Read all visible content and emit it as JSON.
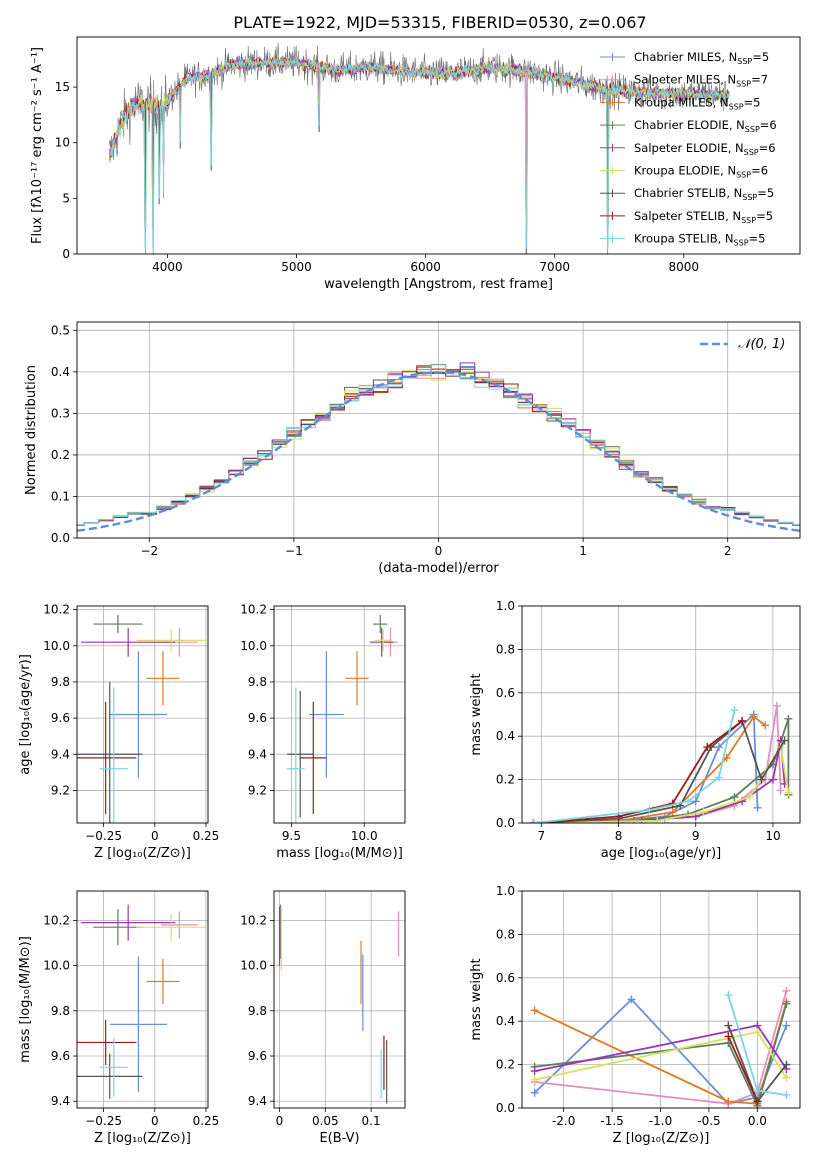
{
  "title": "PLATE=1922, MJD=53315, FIBERID=0530, z=0.067",
  "colors": [
    "#6a8fd9",
    "#e48fc0",
    "#e07a22",
    "#5f7f5f",
    "#9b35b5",
    "#d9e060",
    "#555555",
    "#9b1c1c",
    "#7ad6e0"
  ],
  "legend": [
    {
      "label": "Chabrier MILES, N",
      "sub": "SSP",
      "eq": "=5"
    },
    {
      "label": "Salpeter MILES, N",
      "sub": "SSP",
      "eq": "=7"
    },
    {
      "label": "Kroupa MILES, N",
      "sub": "SSP",
      "eq": "=5"
    },
    {
      "label": "Chabrier ELODIE, N",
      "sub": "SSP",
      "eq": "=6"
    },
    {
      "label": "Salpeter ELODIE, N",
      "sub": "SSP",
      "eq": "=6"
    },
    {
      "label": "Kroupa ELODIE, N",
      "sub": "SSP",
      "eq": "=6"
    },
    {
      "label": "Chabrier STELIB, N",
      "sub": "SSP",
      "eq": "=5"
    },
    {
      "label": "Salpeter STELIB, N",
      "sub": "SSP",
      "eq": "=5"
    },
    {
      "label": "Kroupa STELIB, N",
      "sub": "SSP",
      "eq": "=5"
    }
  ],
  "chart_data": [
    {
      "id": "spectrum",
      "type": "line",
      "xlabel": "wavelength [Angstrom, rest frame]",
      "ylabel": "Flux [fλ10⁻¹⁷ erg cm⁻² s⁻¹ A⁻¹]",
      "xlim": [
        3300,
        8900
      ],
      "ylim": [
        0,
        19.5
      ],
      "xticks": [
        4000,
        5000,
        6000,
        7000,
        8000
      ],
      "yticks": [
        0,
        5,
        10,
        15
      ],
      "continuum_x": [
        3560,
        3650,
        3750,
        3850,
        3950,
        4050,
        4150,
        4300,
        4500,
        4700,
        5000,
        5300,
        5600,
        5900,
        6200,
        6500,
        6800,
        7100,
        7400,
        7700,
        8000,
        8300
      ],
      "continuum_y": [
        9.0,
        12.0,
        13.5,
        13.5,
        13.0,
        14.5,
        15.8,
        16.0,
        17.0,
        17.2,
        17.2,
        16.5,
        16.8,
        16.3,
        16.2,
        16.8,
        16.4,
        15.6,
        14.8,
        14.5,
        14.4,
        14.3
      ],
      "absorption_lines": [
        {
          "x": 3830,
          "y": 0.0
        },
        {
          "x": 3890,
          "y": 0.0
        },
        {
          "x": 3935,
          "y": 4.5
        },
        {
          "x": 3970,
          "y": 5.0
        },
        {
          "x": 4100,
          "y": 9.5
        },
        {
          "x": 4340,
          "y": 7.5
        },
        {
          "x": 5175,
          "y": 11.0
        },
        {
          "x": 6780,
          "y": 0.0
        },
        {
          "x": 7410,
          "y": 0.0
        }
      ]
    },
    {
      "id": "residuals",
      "type": "histogram",
      "xlabel": "(data-model)/error",
      "ylabel": "Normed distribution",
      "xlim": [
        -2.5,
        2.5
      ],
      "ylim": [
        0,
        0.52
      ],
      "xticks": [
        -2,
        -1,
        0,
        1,
        2
      ],
      "yticks": [
        0.0,
        0.1,
        0.2,
        0.3,
        0.4,
        0.5
      ],
      "bin_width": 0.1,
      "reference_label": "𝒩(0, 1)"
    },
    {
      "id": "age-vs-Z",
      "type": "errorbar",
      "xlabel": "Z [log₁₀(Z/Z⊙)]",
      "ylabel": "age  [log₁₀(age/yr)]",
      "xlim": [
        -0.38,
        0.26
      ],
      "ylim": [
        9.02,
        10.22
      ],
      "xticks": [
        -0.25,
        0.0,
        0.25
      ],
      "yticks": [
        9.2,
        9.4,
        9.6,
        9.8,
        10.0,
        10.2
      ],
      "points": [
        {
          "x": -0.08,
          "xe": 0.14,
          "y": 9.62,
          "ye": 0.35
        },
        {
          "x": 0.12,
          "xe": 0.09,
          "y": 10.02,
          "ye": 0.08
        },
        {
          "x": 0.04,
          "xe": 0.08,
          "y": 9.82,
          "ye": 0.15
        },
        {
          "x": -0.18,
          "xe": 0.12,
          "y": 10.12,
          "ye": 0.05
        },
        {
          "x": -0.13,
          "xe": 0.23,
          "y": 10.02,
          "ye": 0.08
        },
        {
          "x": 0.08,
          "xe": 0.17,
          "y": 10.03,
          "ye": 0.06
        },
        {
          "x": -0.22,
          "xe": 0.16,
          "y": 9.4,
          "ye": 0.4
        },
        {
          "x": -0.24,
          "xe": 0.15,
          "y": 9.38,
          "ye": 0.31
        },
        {
          "x": -0.2,
          "xe": 0.07,
          "y": 9.32,
          "ye": 0.45
        }
      ]
    },
    {
      "id": "age-vs-mass",
      "type": "errorbar",
      "xlabel": "mass [log₁₀(M/M⊙)]",
      "xlim": [
        9.38,
        10.28
      ],
      "ylim": [
        9.02,
        10.22
      ],
      "xticks": [
        9.5,
        10.0
      ],
      "yticks": [
        9.2,
        9.4,
        9.6,
        9.8,
        10.0,
        10.2
      ],
      "points": [
        {
          "x": 9.74,
          "xe": 0.12,
          "y": 9.62,
          "ye": 0.35
        },
        {
          "x": 10.18,
          "xe": 0.05,
          "y": 10.02,
          "ye": 0.08
        },
        {
          "x": 9.95,
          "xe": 0.08,
          "y": 9.82,
          "ye": 0.15
        },
        {
          "x": 10.11,
          "xe": 0.05,
          "y": 10.12,
          "ye": 0.05
        },
        {
          "x": 10.12,
          "xe": 0.08,
          "y": 10.02,
          "ye": 0.08
        },
        {
          "x": 10.13,
          "xe": 0.06,
          "y": 10.03,
          "ye": 0.06
        },
        {
          "x": 9.56,
          "xe": 0.09,
          "y": 9.4,
          "ye": 0.35
        },
        {
          "x": 9.65,
          "xe": 0.09,
          "y": 9.38,
          "ye": 0.31
        },
        {
          "x": 9.53,
          "xe": 0.06,
          "y": 9.32,
          "ye": 0.45
        }
      ]
    },
    {
      "id": "mass-weight-vs-age",
      "type": "line",
      "xlabel": "age  [log₁₀(age/yr)]",
      "ylabel": "mass weight",
      "xlim": [
        6.75,
        10.35
      ],
      "ylim": [
        0,
        1.0
      ],
      "xticks": [
        7,
        8,
        9,
        10
      ],
      "yticks": [
        0.0,
        0.2,
        0.4,
        0.6,
        0.8,
        1.0
      ],
      "series": [
        {
          "x": [
            6.9,
            8.0,
            8.6,
            9.0,
            9.3,
            9.75,
            9.8
          ],
          "y": [
            0.0,
            0.01,
            0.03,
            0.1,
            0.35,
            0.5,
            0.07
          ]
        },
        {
          "x": [
            6.9,
            8.0,
            8.6,
            9.0,
            9.5,
            9.9,
            10.05,
            10.1
          ],
          "y": [
            0.0,
            0.01,
            0.02,
            0.03,
            0.08,
            0.2,
            0.54,
            0.15
          ]
        },
        {
          "x": [
            6.9,
            8.0,
            8.7,
            9.4,
            9.75,
            9.9
          ],
          "y": [
            0.0,
            0.01,
            0.05,
            0.3,
            0.49,
            0.45
          ]
        },
        {
          "x": [
            6.9,
            8.2,
            8.9,
            9.5,
            10.0,
            10.2,
            10.2
          ],
          "y": [
            0.0,
            0.01,
            0.04,
            0.12,
            0.27,
            0.48,
            0.13
          ]
        },
        {
          "x": [
            6.9,
            8.3,
            9.0,
            9.6,
            10.0,
            10.1,
            10.15
          ],
          "y": [
            0.0,
            0.01,
            0.03,
            0.1,
            0.2,
            0.38,
            0.18
          ]
        },
        {
          "x": [
            6.9,
            8.5,
            9.1,
            9.7,
            10.1,
            10.2
          ],
          "y": [
            0.0,
            0.01,
            0.05,
            0.12,
            0.35,
            0.14
          ]
        },
        {
          "x": [
            6.9,
            8.0,
            8.8,
            9.2,
            9.6,
            9.85,
            10.15
          ],
          "y": [
            0.0,
            0.02,
            0.08,
            0.35,
            0.47,
            0.2,
            0.38
          ]
        },
        {
          "x": [
            6.9,
            8.0,
            8.7,
            9.15,
            9.6
          ],
          "y": [
            0.0,
            0.03,
            0.09,
            0.35,
            0.47
          ]
        },
        {
          "x": [
            6.9,
            8.4,
            8.9,
            9.3,
            9.5
          ],
          "y": [
            0.0,
            0.06,
            0.1,
            0.21,
            0.52
          ]
        }
      ]
    },
    {
      "id": "mass-vs-Z",
      "type": "errorbar",
      "xlabel": "Z [log₁₀(Z/Z⊙)]",
      "ylabel": "mass [log₁₀(M/M⊙)]",
      "xlim": [
        -0.38,
        0.26
      ],
      "ylim": [
        9.37,
        10.33
      ],
      "xticks": [
        -0.25,
        0.0,
        0.25
      ],
      "yticks": [
        9.4,
        9.6,
        9.8,
        10.0,
        10.2
      ],
      "points": [
        {
          "x": -0.08,
          "xe": 0.14,
          "y": 9.74,
          "ye": 0.3
        },
        {
          "x": 0.12,
          "xe": 0.09,
          "y": 10.18,
          "ye": 0.06
        },
        {
          "x": 0.04,
          "xe": 0.08,
          "y": 9.93,
          "ye": 0.1
        },
        {
          "x": -0.18,
          "xe": 0.12,
          "y": 10.17,
          "ye": 0.08
        },
        {
          "x": -0.13,
          "xe": 0.23,
          "y": 10.19,
          "ye": 0.08
        },
        {
          "x": 0.08,
          "xe": 0.17,
          "y": 10.17,
          "ye": 0.06
        },
        {
          "x": -0.22,
          "xe": 0.16,
          "y": 9.51,
          "ye": 0.1
        },
        {
          "x": -0.24,
          "xe": 0.15,
          "y": 9.66,
          "ye": 0.1
        },
        {
          "x": -0.2,
          "xe": 0.07,
          "y": 9.55,
          "ye": 0.13
        }
      ]
    },
    {
      "id": "EBV",
      "type": "errorbar",
      "xlabel": "E(B-V)",
      "xlim": [
        -0.006,
        0.137
      ],
      "ylim": [
        9.37,
        10.33
      ],
      "xticks": [
        0.0,
        0.05,
        0.1
      ],
      "yticks": [
        9.4,
        9.6,
        9.8,
        10.0,
        10.2
      ],
      "points": [
        {
          "x": 0.091,
          "xe": 0,
          "y": 9.88,
          "ye": 0.17
        },
        {
          "x": 0.13,
          "xe": 0,
          "y": 10.14,
          "ye": 0.1
        },
        {
          "x": 0.089,
          "xe": 0,
          "y": 9.97,
          "ye": 0.14
        },
        {
          "x": 0.001,
          "xe": 0,
          "y": 10.15,
          "ye": 0.12
        },
        {
          "x": 0.0,
          "xe": 0,
          "y": 10.13,
          "ye": 0.13
        },
        {
          "x": 0.002,
          "xe": 0,
          "y": 10.12,
          "ye": 0.14
        },
        {
          "x": 0.117,
          "xe": 0,
          "y": 9.53,
          "ye": 0.14
        },
        {
          "x": 0.114,
          "xe": 0,
          "y": 9.57,
          "ye": 0.12
        },
        {
          "x": 0.111,
          "xe": 0,
          "y": 9.52,
          "ye": 0.11
        }
      ]
    },
    {
      "id": "mass-weight-vs-Z",
      "type": "line",
      "xlabel": "Z [log₁₀(Z/Z⊙)]",
      "ylabel": "mass weight",
      "xlim": [
        -2.43,
        0.44
      ],
      "ylim": [
        0,
        1.0
      ],
      "xticks": [
        -2.0,
        -1.5,
        -1.0,
        -0.5,
        0.0
      ],
      "yticks": [
        0.0,
        0.2,
        0.4,
        0.6,
        0.8,
        1.0
      ],
      "series": [
        {
          "x": [
            -2.3,
            -1.3,
            -0.3,
            0.0,
            0.3
          ],
          "y": [
            0.07,
            0.5,
            0.02,
            0.05,
            0.38
          ]
        },
        {
          "x": [
            -2.3,
            -0.3,
            0.0,
            0.3
          ],
          "y": [
            0.12,
            0.02,
            0.07,
            0.54
          ]
        },
        {
          "x": [
            -2.3,
            -0.3,
            0.0,
            0.3
          ],
          "y": [
            0.45,
            0.03,
            0.02,
            0.49
          ]
        },
        {
          "x": [
            -2.3,
            -0.3,
            0.0,
            0.3
          ],
          "y": [
            0.19,
            0.3,
            0.01,
            0.48
          ]
        },
        {
          "x": [
            -2.3,
            0.0,
            0.3
          ],
          "y": [
            0.17,
            0.38,
            0.18
          ]
        },
        {
          "x": [
            -2.3,
            0.0,
            0.3
          ],
          "y": [
            0.13,
            0.35,
            0.14
          ]
        },
        {
          "x": [
            -0.3,
            0.0,
            0.3
          ],
          "y": [
            0.38,
            0.03,
            0.2
          ]
        },
        {
          "x": [
            -0.3,
            0.0
          ],
          "y": [
            0.33,
            0.03
          ]
        },
        {
          "x": [
            -0.3,
            0.0,
            0.3
          ],
          "y": [
            0.52,
            0.08,
            0.06
          ]
        }
      ]
    }
  ]
}
